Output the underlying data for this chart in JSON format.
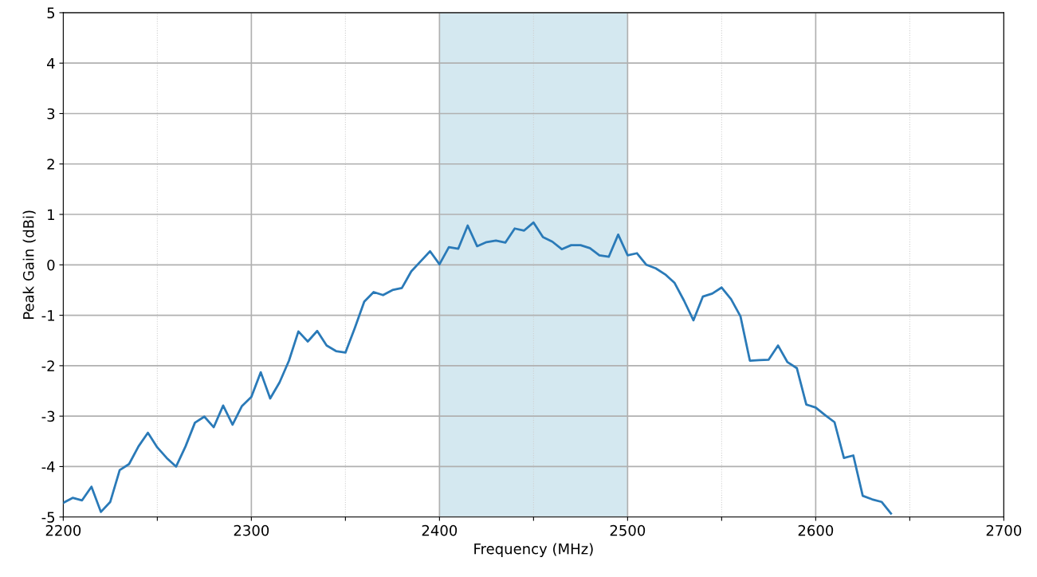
{
  "chart_data": {
    "type": "line",
    "xlabel": "Frequency (MHz)",
    "ylabel": "Peak Gain (dBi)",
    "x": [
      2200,
      2205,
      2210,
      2215,
      2220,
      2225,
      2230,
      2235,
      2240,
      2245,
      2250,
      2255,
      2260,
      2265,
      2270,
      2275,
      2280,
      2285,
      2290,
      2295,
      2300,
      2305,
      2310,
      2315,
      2320,
      2325,
      2330,
      2335,
      2340,
      2345,
      2350,
      2355,
      2360,
      2365,
      2370,
      2375,
      2380,
      2385,
      2390,
      2395,
      2400,
      2405,
      2410,
      2415,
      2420,
      2425,
      2430,
      2435,
      2440,
      2445,
      2450,
      2455,
      2460,
      2465,
      2470,
      2475,
      2480,
      2485,
      2490,
      2495,
      2500,
      2505,
      2510,
      2515,
      2520,
      2525,
      2530,
      2535,
      2540,
      2545,
      2550,
      2555,
      2560,
      2565,
      2570,
      2575,
      2580,
      2585,
      2590,
      2595,
      2600,
      2605,
      2610,
      2615,
      2620,
      2625,
      2630,
      2635,
      2640
    ],
    "series": [
      {
        "color": "#2a7ab8",
        "values": [
          -4.72,
          -4.62,
          -4.67,
          -4.4,
          -4.9,
          -4.7,
          -4.07,
          -3.95,
          -3.6,
          -3.33,
          -3.62,
          -3.83,
          -4.0,
          -3.6,
          -3.13,
          -3.01,
          -3.22,
          -2.79,
          -3.17,
          -2.8,
          -2.62,
          -2.13,
          -2.65,
          -2.33,
          -1.9,
          -1.32,
          -1.52,
          -1.31,
          -1.6,
          -1.71,
          -1.74,
          -1.25,
          -0.73,
          -0.54,
          -0.6,
          -0.5,
          -0.46,
          -0.13,
          0.07,
          0.27,
          0.01,
          0.35,
          0.32,
          0.78,
          0.37,
          0.45,
          0.48,
          0.44,
          0.72,
          0.68,
          0.84,
          0.55,
          0.46,
          0.31,
          0.39,
          0.39,
          0.33,
          0.19,
          0.16,
          0.6,
          0.19,
          0.23,
          0.0,
          -0.07,
          -0.19,
          -0.36,
          -0.71,
          -1.1,
          -0.63,
          -0.57,
          -0.45,
          -0.68,
          -1.02,
          -1.9,
          -1.89,
          -1.88,
          -1.6,
          -1.93,
          -2.05,
          -2.77,
          -2.83,
          -2.98,
          -3.12,
          -3.83,
          -3.78,
          -4.58,
          -4.65,
          -4.7,
          -4.93
        ]
      }
    ],
    "xlim": [
      2200,
      2700
    ],
    "ylim": [
      -5,
      5
    ],
    "xticks": [
      2200,
      {
        "value": 2250,
        "label": null
      },
      2300,
      {
        "value": 2350,
        "label": null
      },
      2400,
      {
        "value": 2450,
        "label": null
      },
      2500,
      {
        "value": 2550,
        "label": null
      },
      2600,
      {
        "value": 2650,
        "label": null
      },
      2700
    ],
    "yticks": [
      -5,
      -4,
      -3,
      -2,
      -1,
      0,
      1,
      2,
      3,
      4,
      5
    ],
    "bands": [
      {
        "axis": "x",
        "from": 2400,
        "to": 2500,
        "color": "#d4e8f0"
      }
    ],
    "grid": true,
    "line_style": "solid",
    "marker": "none"
  }
}
